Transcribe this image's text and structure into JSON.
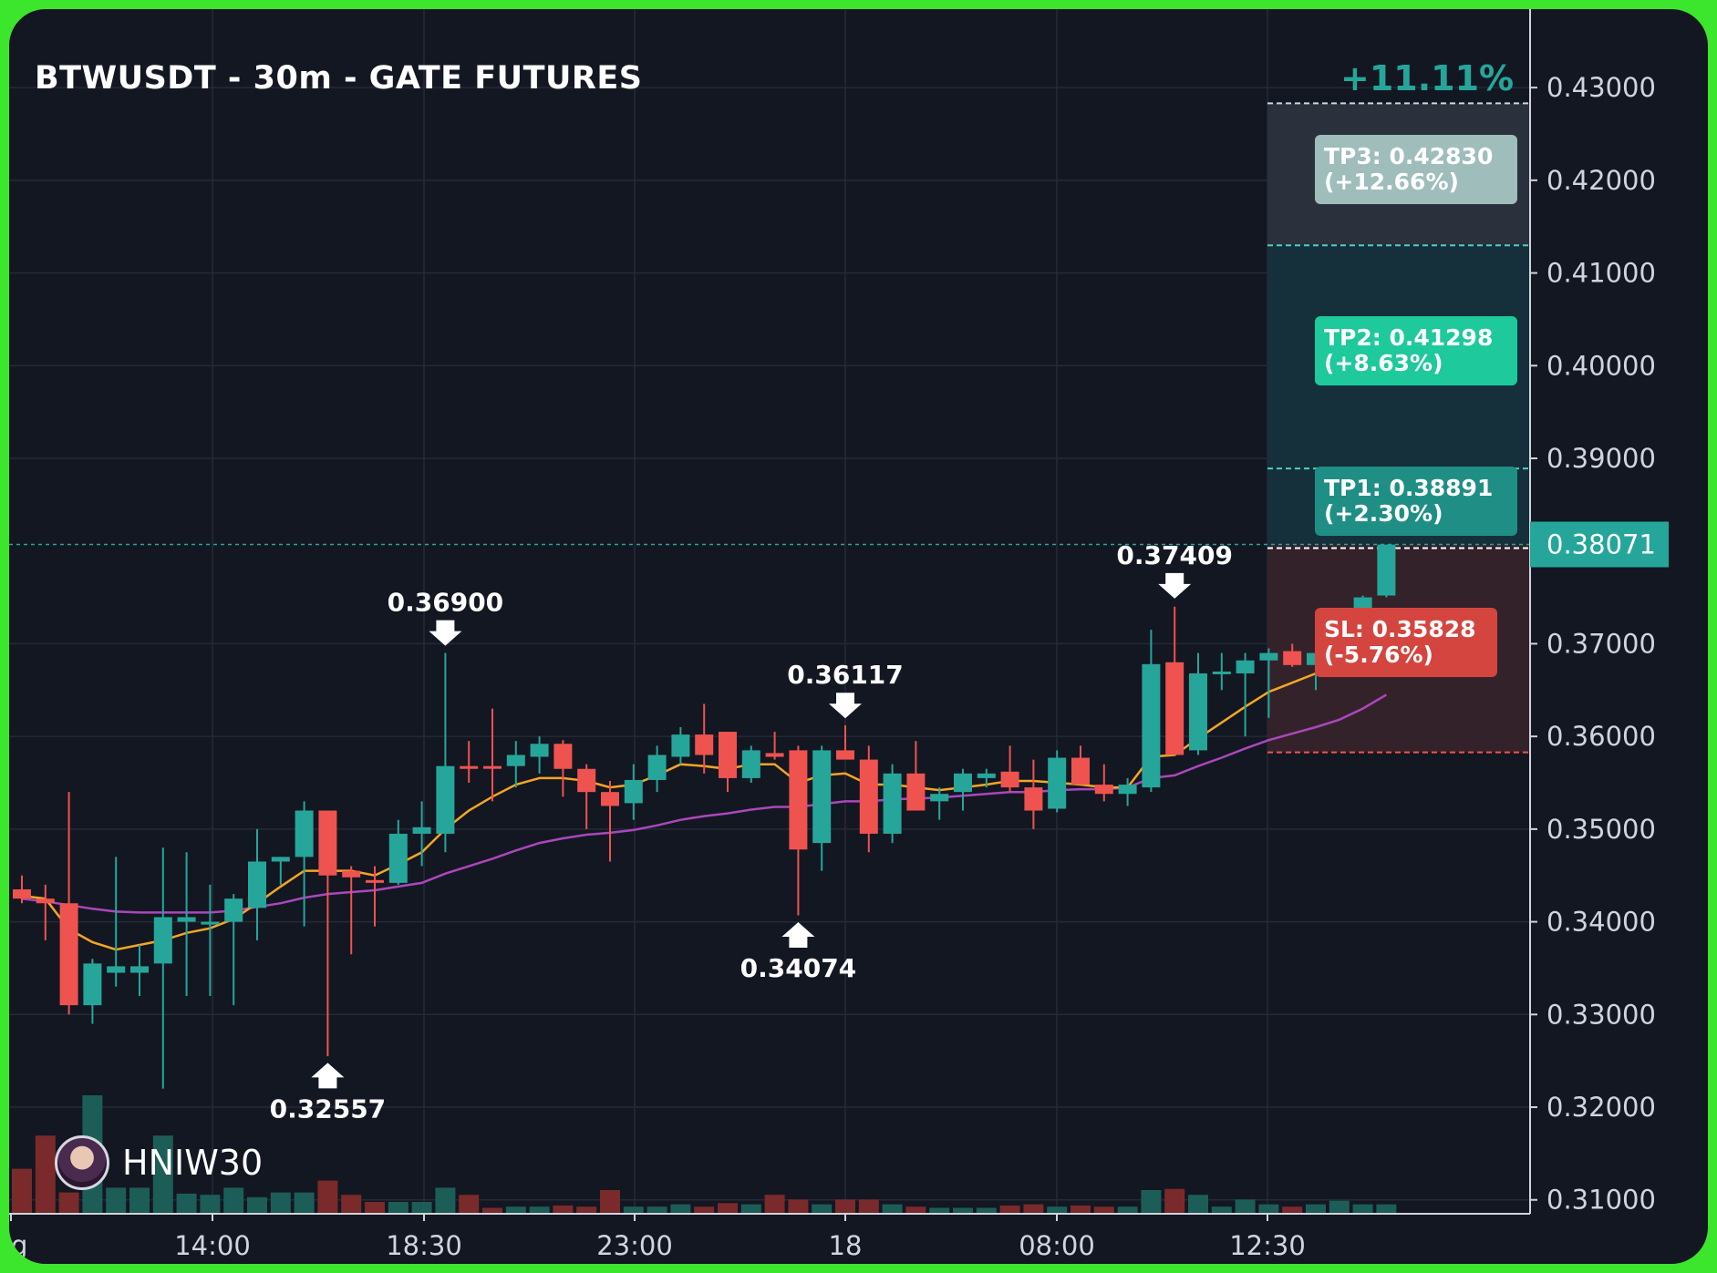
{
  "header": {
    "title": "BTWUSDT - 30m - GATE FUTURES"
  },
  "trade": {
    "gain_label": "+11.11%",
    "tp3": {
      "line1": "TP3: 0.42830",
      "line2": "(+12.66%)"
    },
    "tp2": {
      "line1": "TP2: 0.41298",
      "line2": "(+8.63%)"
    },
    "tp1": {
      "line1": "TP1: 0.38891",
      "line2": "(+2.30%)"
    },
    "sl": {
      "line1": "SL: 0.35828",
      "line2": "(-5.76%)"
    },
    "current_price": "0.38071"
  },
  "user": {
    "name": "HNIW30",
    "avatar_icon": "avatar-icon"
  },
  "colors": {
    "up": "#26a69a",
    "down": "#ef5350",
    "ema_fast": "#f5a623",
    "ema_slow": "#ab47bc",
    "tp_line": "#4dd0c4",
    "sl_line": "#ef5350"
  },
  "chart_data": {
    "type": "candlestick",
    "y_axis": {
      "ticks": [
        "0.43000",
        "0.42000",
        "0.41000",
        "0.40000",
        "0.39000",
        "0.38071",
        "0.37000",
        "0.36000",
        "0.35000",
        "0.34000",
        "0.33000",
        "0.32000",
        "0.31000"
      ],
      "ylim": [
        0.3085,
        0.4365
      ]
    },
    "x_axis": {
      "ticks": [
        "g",
        "14:00",
        "18:30",
        "23:00",
        "18",
        "08:00",
        "12:30"
      ]
    },
    "annotations": [
      {
        "label": "0.36900",
        "value": 0.369,
        "dir": "down"
      },
      {
        "label": "0.32557",
        "value": 0.32557,
        "dir": "up"
      },
      {
        "label": "0.36117",
        "value": 0.36117,
        "dir": "down"
      },
      {
        "label": "0.34074",
        "value": 0.34074,
        "dir": "up"
      },
      {
        "label": "0.37409",
        "value": 0.37409,
        "dir": "down"
      }
    ],
    "levels": {
      "entry": 0.38071,
      "tp1": 0.38891,
      "tp2": 0.41298,
      "tp3": 0.4283,
      "sl": 0.35828
    },
    "candles": [
      [
        0.3435,
        0.345,
        0.342,
        0.3425
      ],
      [
        0.3425,
        0.344,
        0.338,
        0.342
      ],
      [
        0.342,
        0.354,
        0.33,
        0.331
      ],
      [
        0.331,
        0.336,
        0.329,
        0.3355
      ],
      [
        0.3345,
        0.347,
        0.333,
        0.3352
      ],
      [
        0.3345,
        0.3375,
        0.332,
        0.3352
      ],
      [
        0.3355,
        0.348,
        0.322,
        0.3405
      ],
      [
        0.34,
        0.3475,
        0.332,
        0.3405
      ],
      [
        0.34,
        0.344,
        0.332,
        0.34
      ],
      [
        0.34,
        0.343,
        0.331,
        0.3425
      ],
      [
        0.3415,
        0.35,
        0.338,
        0.3465
      ],
      [
        0.3465,
        0.347,
        0.344,
        0.347
      ],
      [
        0.347,
        0.353,
        0.3395,
        0.352
      ],
      [
        0.352,
        0.352,
        0.3255,
        0.345
      ],
      [
        0.3455,
        0.346,
        0.3365,
        0.3448
      ],
      [
        0.3445,
        0.346,
        0.3395,
        0.3442
      ],
      [
        0.3442,
        0.351,
        0.344,
        0.3495
      ],
      [
        0.3495,
        0.353,
        0.346,
        0.3502
      ],
      [
        0.3495,
        0.369,
        0.3475,
        0.3568
      ],
      [
        0.3568,
        0.3595,
        0.355,
        0.3565
      ],
      [
        0.3568,
        0.363,
        0.353,
        0.3567
      ],
      [
        0.3568,
        0.3595,
        0.3545,
        0.358
      ],
      [
        0.3578,
        0.36,
        0.356,
        0.3592
      ],
      [
        0.3592,
        0.3596,
        0.3535,
        0.3565
      ],
      [
        0.3565,
        0.357,
        0.35,
        0.354
      ],
      [
        0.354,
        0.3552,
        0.3465,
        0.3525
      ],
      [
        0.3528,
        0.357,
        0.351,
        0.3553
      ],
      [
        0.3553,
        0.359,
        0.354,
        0.358
      ],
      [
        0.3578,
        0.361,
        0.357,
        0.3602
      ],
      [
        0.3602,
        0.3635,
        0.356,
        0.358
      ],
      [
        0.3605,
        0.3605,
        0.354,
        0.3555
      ],
      [
        0.3555,
        0.359,
        0.355,
        0.3585
      ],
      [
        0.3582,
        0.3605,
        0.3575,
        0.3578
      ],
      [
        0.3585,
        0.359,
        0.3407,
        0.3478
      ],
      [
        0.3485,
        0.359,
        0.3455,
        0.3585
      ],
      [
        0.3585,
        0.3612,
        0.358,
        0.3575
      ],
      [
        0.3575,
        0.359,
        0.3475,
        0.3495
      ],
      [
        0.3495,
        0.357,
        0.3485,
        0.356
      ],
      [
        0.356,
        0.3595,
        0.3525,
        0.352
      ],
      [
        0.353,
        0.3545,
        0.351,
        0.3538
      ],
      [
        0.354,
        0.3565,
        0.352,
        0.356
      ],
      [
        0.3555,
        0.3565,
        0.3545,
        0.356
      ],
      [
        0.3562,
        0.359,
        0.354,
        0.3545
      ],
      [
        0.3545,
        0.3575,
        0.35,
        0.352
      ],
      [
        0.3522,
        0.3585,
        0.3518,
        0.3577
      ],
      [
        0.3577,
        0.359,
        0.355,
        0.3548
      ],
      [
        0.3548,
        0.357,
        0.353,
        0.3538
      ],
      [
        0.3538,
        0.3555,
        0.3525,
        0.3548
      ],
      [
        0.3545,
        0.3715,
        0.354,
        0.3678
      ],
      [
        0.368,
        0.374,
        0.359,
        0.358
      ],
      [
        0.3585,
        0.369,
        0.358,
        0.3668
      ],
      [
        0.367,
        0.369,
        0.365,
        0.367
      ],
      [
        0.3668,
        0.369,
        0.36,
        0.3682
      ],
      [
        0.3682,
        0.3695,
        0.362,
        0.369
      ],
      [
        0.3692,
        0.37,
        0.3675,
        0.3677
      ],
      [
        0.3677,
        0.37,
        0.365,
        0.369
      ],
      [
        0.369,
        0.3735,
        0.369,
        0.372
      ],
      [
        0.3722,
        0.3752,
        0.3705,
        0.375
      ],
      [
        0.3752,
        0.3807,
        0.375,
        0.3807
      ]
    ],
    "volumes": [
      0.38,
      0.66,
      0.18,
      1.0,
      0.22,
      0.22,
      0.66,
      0.17,
      0.16,
      0.22,
      0.14,
      0.18,
      0.18,
      0.28,
      0.16,
      0.1,
      0.1,
      0.1,
      0.22,
      0.16,
      0.05,
      0.06,
      0.06,
      0.07,
      0.06,
      0.2,
      0.06,
      0.06,
      0.08,
      0.06,
      0.09,
      0.08,
      0.16,
      0.12,
      0.08,
      0.12,
      0.12,
      0.08,
      0.06,
      0.05,
      0.05,
      0.05,
      0.07,
      0.08,
      0.06,
      0.07,
      0.06,
      0.06,
      0.2,
      0.21,
      0.16,
      0.06,
      0.12,
      0.08,
      0.06,
      0.08,
      0.11,
      0.08,
      0.08
    ],
    "ema_fast": [
      0.3428,
      0.3425,
      0.3392,
      0.3378,
      0.337,
      0.3375,
      0.338,
      0.3388,
      0.3393,
      0.3403,
      0.342,
      0.3438,
      0.3455,
      0.3455,
      0.3455,
      0.345,
      0.3462,
      0.3475,
      0.35,
      0.352,
      0.3535,
      0.3548,
      0.3555,
      0.3555,
      0.3552,
      0.3545,
      0.3548,
      0.3558,
      0.357,
      0.3568,
      0.3565,
      0.357,
      0.357,
      0.355,
      0.3558,
      0.356,
      0.3548,
      0.3548,
      0.3545,
      0.3542,
      0.3545,
      0.3548,
      0.3552,
      0.3552,
      0.355,
      0.3548,
      0.3545,
      0.3545,
      0.3578,
      0.358,
      0.3598,
      0.3615,
      0.3632,
      0.3648,
      0.3658,
      0.3668,
      0.3682,
      0.3702,
      0.373
    ],
    "ema_slow": [
      0.3425,
      0.3422,
      0.3418,
      0.3414,
      0.3411,
      0.341,
      0.341,
      0.341,
      0.341,
      0.3412,
      0.3416,
      0.342,
      0.3426,
      0.343,
      0.3432,
      0.3434,
      0.3438,
      0.3442,
      0.3452,
      0.346,
      0.3468,
      0.3477,
      0.3485,
      0.349,
      0.3494,
      0.3496,
      0.3499,
      0.3504,
      0.351,
      0.3514,
      0.3517,
      0.3521,
      0.3524,
      0.3524,
      0.3527,
      0.353,
      0.353,
      0.3532,
      0.3533,
      0.3534,
      0.3536,
      0.3538,
      0.354,
      0.354,
      0.3542,
      0.3543,
      0.3543,
      0.3545,
      0.3555,
      0.3558,
      0.3568,
      0.3577,
      0.3587,
      0.3596,
      0.3603,
      0.361,
      0.3618,
      0.363,
      0.3645
    ]
  }
}
